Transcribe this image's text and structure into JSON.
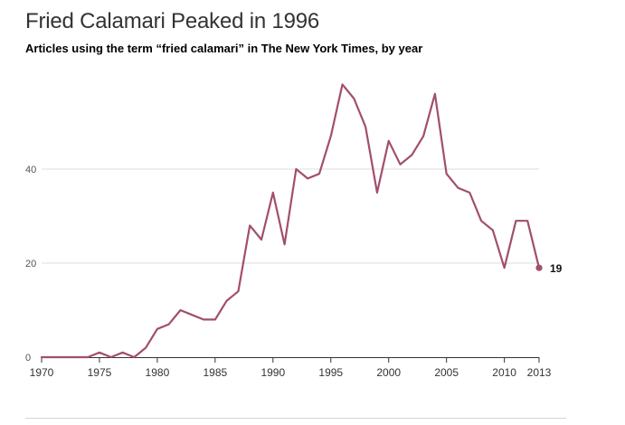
{
  "header": {
    "title": "Fried Calamari Peaked in 1996",
    "subtitle": "Articles using the term “fried calamari” in The New York Times, by year"
  },
  "chart_data": {
    "type": "line",
    "title": "Fried Calamari Peaked in 1996",
    "subtitle": "Articles using the term “fried calamari” in The New York Times, by year",
    "xlabel": "",
    "ylabel": "",
    "x": [
      1970,
      1971,
      1972,
      1973,
      1974,
      1975,
      1976,
      1977,
      1978,
      1979,
      1980,
      1981,
      1982,
      1983,
      1984,
      1985,
      1986,
      1987,
      1988,
      1989,
      1990,
      1991,
      1992,
      1993,
      1994,
      1995,
      1996,
      1997,
      1998,
      1999,
      2000,
      2001,
      2002,
      2003,
      2004,
      2005,
      2006,
      2007,
      2008,
      2009,
      2010,
      2011,
      2012,
      2013
    ],
    "series": [
      {
        "name": "",
        "values": [
          0,
          0,
          0,
          0,
          0,
          1,
          0,
          1,
          0,
          2,
          6,
          7,
          10,
          9,
          8,
          8,
          12,
          14,
          28,
          25,
          35,
          24,
          40,
          38,
          39,
          47,
          58,
          55,
          49,
          35,
          46,
          41,
          43,
          47,
          56,
          39,
          36,
          35,
          29,
          27,
          19,
          29,
          29,
          19
        ],
        "color": "#a24e6e"
      }
    ],
    "end_label": "19",
    "xlim": [
      1970,
      2013
    ],
    "ylim": [
      0,
      60
    ],
    "x_ticks": [
      "1970",
      "1975",
      "1980",
      "1985",
      "1990",
      "1995",
      "2000",
      "2005",
      "2010",
      "2013"
    ],
    "y_ticks": [
      "0",
      "20",
      "40"
    ],
    "grid": "horizontal"
  }
}
